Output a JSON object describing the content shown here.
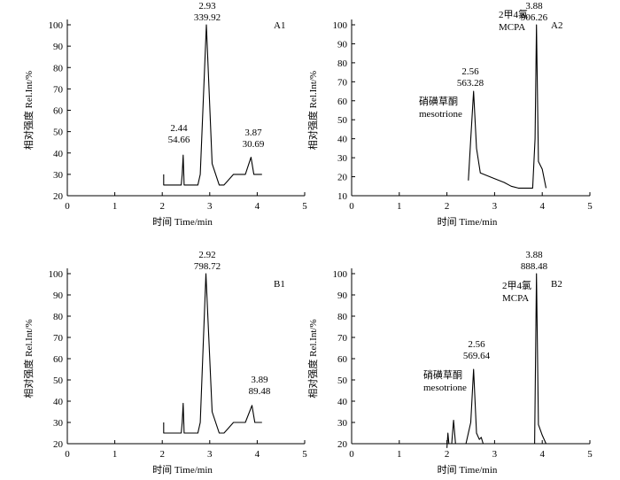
{
  "chart_data": [
    {
      "type": "line",
      "panel_label": "A1",
      "xlabel": "时间 Time/min",
      "ylabel": "相对强度 Rel.Int/%",
      "xlim": [
        0,
        5
      ],
      "ylim": [
        20,
        100
      ],
      "x_ticks": [
        "0",
        "1",
        "2",
        "3",
        "4",
        "5"
      ],
      "y_ticks": [
        "20",
        "30",
        "40",
        "50",
        "60",
        "70",
        "80",
        "90",
        "100"
      ],
      "series": [
        {
          "x": [
            2.03,
            2.03,
            2.05,
            2.4,
            2.42,
            2.44,
            2.46,
            2.5,
            2.75,
            2.8,
            2.93,
            3.05,
            3.2,
            3.3,
            3.5,
            3.75,
            3.87,
            3.93,
            4.1
          ],
          "y": [
            30,
            25,
            25,
            25,
            30,
            39,
            25,
            25,
            25,
            30,
            100,
            35,
            25,
            25,
            30,
            30,
            38,
            30,
            30
          ]
        }
      ],
      "annotations": [
        {
          "x": 2.44,
          "y": 39,
          "lines": [
            "2.44",
            "54.66"
          ]
        },
        {
          "x": 2.93,
          "y": 100,
          "lines": [
            "2.93",
            "339.92"
          ]
        },
        {
          "x": 3.87,
          "y": 38,
          "lines": [
            "3.87",
            "30.69"
          ]
        }
      ]
    },
    {
      "type": "line",
      "panel_label": "A2",
      "xlabel": "时间 Time/min",
      "ylabel": "相对强度 Rel.Int/%",
      "xlim": [
        0,
        5
      ],
      "ylim": [
        10,
        100
      ],
      "x_ticks": [
        "0",
        "1",
        "2",
        "3",
        "4",
        "5"
      ],
      "y_ticks": [
        "10",
        "20",
        "30",
        "40",
        "50",
        "60",
        "70",
        "80",
        "90",
        "100"
      ],
      "series": [
        {
          "x": [
            2.45,
            2.5,
            2.56,
            2.62,
            2.7,
            3.0,
            3.2,
            3.35,
            3.5,
            3.6,
            3.8,
            3.85,
            3.88,
            3.92,
            4.0,
            4.08
          ],
          "y": [
            18,
            40,
            65,
            35,
            22,
            19,
            17,
            15,
            14,
            14,
            14,
            40,
            100,
            28,
            24,
            14
          ]
        }
      ],
      "annotations": [
        {
          "x": 2.56,
          "y": 65,
          "lines": [
            "2.56",
            "563.28"
          ]
        },
        {
          "x": 3.88,
          "y": 100,
          "lines": [
            "3.88",
            "906.26"
          ]
        }
      ],
      "compound_labels": [
        {
          "lines": [
            "硝磺草酮",
            "mesotrione"
          ]
        },
        {
          "lines": [
            "2甲4氯",
            "MCPA"
          ]
        }
      ]
    },
    {
      "type": "line",
      "panel_label": "B1",
      "xlabel": "时间 Time/min",
      "ylabel": "相对强度 Rel.Int/%",
      "xlim": [
        0,
        5
      ],
      "ylim": [
        20,
        100
      ],
      "x_ticks": [
        "0",
        "1",
        "2",
        "3",
        "4",
        "5"
      ],
      "y_ticks": [
        "20",
        "30",
        "40",
        "50",
        "60",
        "70",
        "80",
        "90",
        "100"
      ],
      "series": [
        {
          "x": [
            2.03,
            2.03,
            2.05,
            2.4,
            2.42,
            2.44,
            2.46,
            2.5,
            2.75,
            2.8,
            2.92,
            3.05,
            3.2,
            3.3,
            3.5,
            3.75,
            3.89,
            3.95,
            4.1
          ],
          "y": [
            30,
            25,
            25,
            25,
            30,
            39,
            25,
            25,
            25,
            30,
            100,
            35,
            25,
            25,
            30,
            30,
            38,
            30,
            30
          ]
        }
      ],
      "annotations": [
        {
          "x": 2.92,
          "y": 100,
          "lines": [
            "2.92",
            "798.72"
          ]
        },
        {
          "x": 3.89,
          "y": 38,
          "lines": [
            "3.89",
            "89.48"
          ]
        }
      ]
    },
    {
      "type": "line",
      "panel_label": "B2",
      "xlabel": "时间 Time/min",
      "ylabel": "相对强度 Rel.Int/%",
      "xlim": [
        0,
        5
      ],
      "ylim": [
        20,
        100
      ],
      "x_ticks": [
        "0",
        "1",
        "2",
        "3",
        "4",
        "5"
      ],
      "y_ticks": [
        "20",
        "30",
        "40",
        "50",
        "60",
        "70",
        "80",
        "90",
        "100"
      ],
      "series": [
        {
          "x": [
            2.0,
            2.02,
            2.04,
            2.06,
            2.1,
            2.14,
            2.18,
            2.3,
            2.4,
            2.5,
            2.56,
            2.62,
            2.68,
            2.72,
            2.76,
            2.8,
            3.0,
            3.5,
            3.84,
            3.88,
            3.92,
            4.0,
            4.08
          ],
          "y": [
            18,
            25,
            20,
            20,
            20,
            31,
            20,
            20,
            20,
            30,
            55,
            25,
            22,
            23,
            20,
            20,
            20,
            20,
            20,
            100,
            29,
            24,
            20
          ]
        }
      ],
      "annotations": [
        {
          "x": 2.56,
          "y": 55,
          "lines": [
            "2.56",
            "569.64"
          ]
        },
        {
          "x": 3.88,
          "y": 100,
          "lines": [
            "3.88",
            "888.48"
          ]
        }
      ],
      "compound_labels": [
        {
          "lines": [
            "硝磺草酮",
            "mesotrione"
          ]
        },
        {
          "lines": [
            "2甲4氯",
            "MCPA"
          ]
        }
      ]
    }
  ]
}
